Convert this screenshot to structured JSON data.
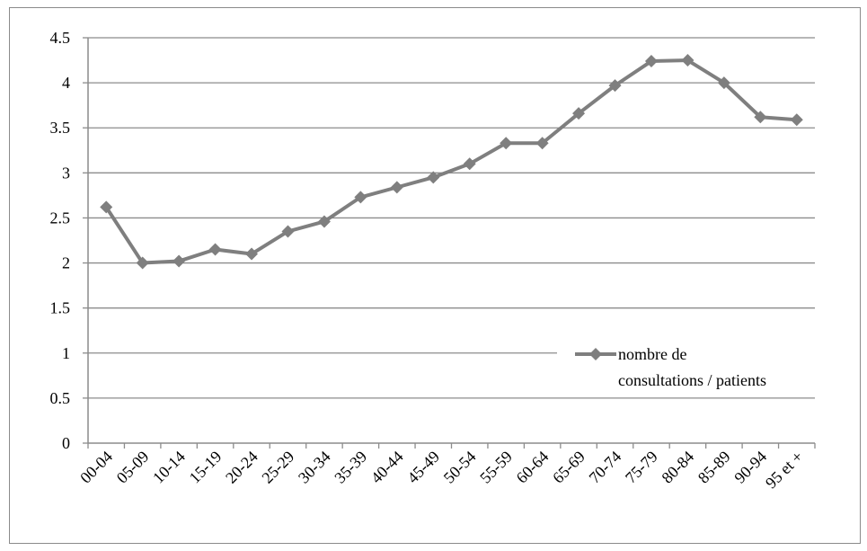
{
  "chart_data": {
    "type": "line",
    "title": "",
    "xlabel": "",
    "ylabel": "",
    "categories": [
      "00-04",
      "05-09",
      "10-14",
      "15-19",
      "20-24",
      "25-29",
      "30-34",
      "35-39",
      "40-44",
      "45-49",
      "50-54",
      "55-59",
      "60-64",
      "65-69",
      "70-74",
      "75-79",
      "80-84",
      "85-89",
      "90-94",
      "95 et +"
    ],
    "series": [
      {
        "name": "nombre de consultations / patients",
        "values": [
          2.62,
          2.0,
          2.02,
          2.15,
          2.1,
          2.35,
          2.46,
          2.73,
          2.84,
          2.95,
          3.1,
          3.33,
          3.33,
          3.66,
          3.97,
          4.24,
          4.25,
          4.0,
          3.62,
          3.59
        ]
      }
    ],
    "ylim": [
      0,
      4.5
    ],
    "yticks": [
      "0",
      "0.5",
      "1",
      "1.5",
      "2",
      "2.5",
      "3",
      "3.5",
      "4",
      "4.5"
    ],
    "grid": true,
    "legend_position": "right",
    "legend_lines": [
      "nombre de",
      "consultations / patients"
    ],
    "colors": {
      "series": "#7f7f7f",
      "grid": "#8c8c8c",
      "axis": "#8c8c8c"
    },
    "marker": "diamond"
  }
}
